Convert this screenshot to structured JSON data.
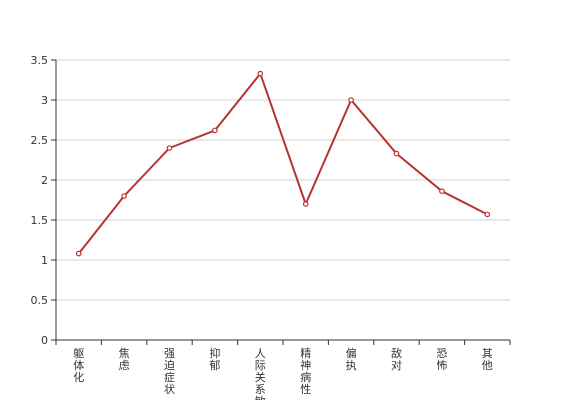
{
  "colors": {
    "line": "#b83232",
    "grid": "#d0d0d0",
    "axis": "#333333",
    "point_fill": "#ffffff"
  },
  "chart_data": {
    "type": "line",
    "title": "",
    "xlabel": "",
    "ylabel": "",
    "ylim": [
      0,
      3.5
    ],
    "yticks": [
      0,
      0.5,
      1,
      1.5,
      2,
      2.5,
      3,
      3.5
    ],
    "ytick_labels": [
      "0",
      "0.5",
      "1",
      "1.5",
      "2",
      "2.5",
      "3",
      "3.5"
    ],
    "grid": true,
    "categories": [
      "躯体化",
      "焦虑",
      "强迫症状",
      "抑郁",
      "人际关系敏感",
      "精神病性",
      "偏执",
      "敌对",
      "恐怖",
      "其他"
    ],
    "series": [
      {
        "values": [
          1.08,
          1.8,
          2.4,
          2.62,
          3.33,
          1.7,
          3.0,
          2.33,
          1.86,
          1.57
        ]
      }
    ]
  }
}
